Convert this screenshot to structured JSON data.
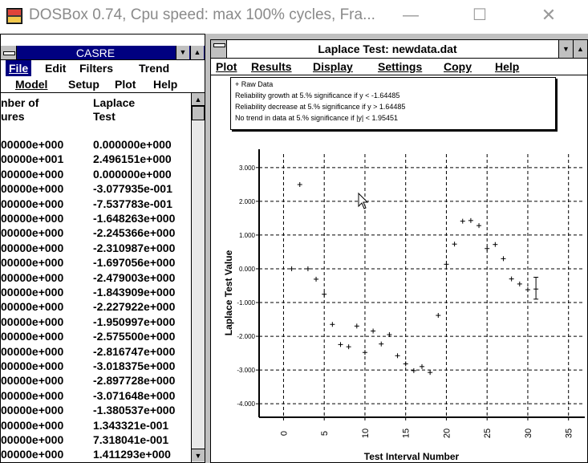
{
  "host": {
    "title": "DOSBox 0.74, Cpu speed: max 100% cycles, Fra...",
    "icon": "dosbox-icon",
    "controls": {
      "minimize": "—",
      "maximize": "☐",
      "close": "✕"
    }
  },
  "casre": {
    "title": "CASRE",
    "title_buttons": {
      "down": "▼",
      "up": "▲"
    },
    "menu_row1": [
      {
        "label": "File",
        "selected": true
      },
      {
        "label": "Edit",
        "selected": false
      },
      {
        "label": "Filters",
        "selected": false
      },
      {
        "label": "Trend",
        "selected": false
      }
    ],
    "menu_row2": [
      {
        "label": "Model"
      },
      {
        "label": "Setup"
      },
      {
        "label": "Plot"
      },
      {
        "label": "Help"
      }
    ],
    "columns": {
      "col1_line1": "nber of",
      "col1_line2": "ures",
      "col2_line1": "Laplace",
      "col2_line2": "Test"
    },
    "rows": [
      [
        "00000e+000",
        "0.000000e+000"
      ],
      [
        "00000e+001",
        "2.496151e+000"
      ],
      [
        "00000e+000",
        "0.000000e+000"
      ],
      [
        "00000e+000",
        "-3.077935e-001"
      ],
      [
        "00000e+000",
        "-7.537783e-001"
      ],
      [
        "00000e+000",
        "-1.648263e+000"
      ],
      [
        "00000e+000",
        "-2.245366e+000"
      ],
      [
        "00000e+000",
        "-2.310987e+000"
      ],
      [
        "00000e+000",
        "-1.697056e+000"
      ],
      [
        "00000e+000",
        "-2.479003e+000"
      ],
      [
        "00000e+000",
        "-1.843909e+000"
      ],
      [
        "00000e+000",
        "-2.227922e+000"
      ],
      [
        "00000e+000",
        "-1.950997e+000"
      ],
      [
        "00000e+000",
        "-2.575500e+000"
      ],
      [
        "00000e+000",
        "-2.816747e+000"
      ],
      [
        "00000e+000",
        "-3.018375e+000"
      ],
      [
        "00000e+000",
        "-2.897728e+000"
      ],
      [
        "00000e+000",
        "-3.071648e+000"
      ],
      [
        "00000e+000",
        "-1.380537e+000"
      ],
      [
        "00000e+000",
        "1.343321e-001"
      ],
      [
        "00000e+000",
        "7.318041e-001"
      ],
      [
        "00000e+000",
        "1.411293e+000"
      ]
    ],
    "scroll": {
      "up": "▲",
      "down": "▼"
    }
  },
  "laplace": {
    "title": "Laplace Test:  newdata.dat",
    "title_buttons": {
      "down": "▼",
      "up": "▲"
    },
    "menu": [
      {
        "label": "Plot"
      },
      {
        "label": "Results"
      },
      {
        "label": "Display"
      },
      {
        "label": "Settings"
      },
      {
        "label": "Copy"
      },
      {
        "label": "Help"
      }
    ],
    "legend": [
      "+  Raw Data",
      "Reliability growth at 5.% significance if y < -1.64485",
      "Reliability decrease at 5.% significance if y > 1.64485",
      "No trend in data at 5.% significance if |y| < 1.95451"
    ]
  },
  "chart_data": {
    "type": "scatter",
    "xlabel": "Test Interval Number",
    "ylabel": "Laplace Test Value",
    "xlim": [
      -3,
      37
    ],
    "ylim": [
      -4.4,
      3.4
    ],
    "x_ticks": [
      0,
      5,
      10,
      15,
      20,
      25,
      30,
      35
    ],
    "y_ticks": [
      3,
      2,
      1,
      0,
      -1,
      -2,
      -3,
      -4
    ],
    "y_tick_labels": [
      "3.000",
      "2.000",
      "1.000",
      "0.000",
      "-1.000",
      "-2.000",
      "-3.000",
      "-4.000"
    ],
    "grid": true,
    "marker": "+",
    "points": [
      [
        1,
        0.0
      ],
      [
        2,
        2.496
      ],
      [
        3,
        0.0
      ],
      [
        4,
        -0.308
      ],
      [
        5,
        -0.754
      ],
      [
        6,
        -1.648
      ],
      [
        7,
        -2.245
      ],
      [
        8,
        -2.311
      ],
      [
        9,
        -1.697
      ],
      [
        10,
        -2.479
      ],
      [
        11,
        -1.844
      ],
      [
        12,
        -2.228
      ],
      [
        13,
        -1.951
      ],
      [
        14,
        -2.576
      ],
      [
        15,
        -2.817
      ],
      [
        16,
        -3.018
      ],
      [
        17,
        -2.898
      ],
      [
        18,
        -3.072
      ],
      [
        19,
        -1.381
      ],
      [
        20,
        0.134
      ],
      [
        21,
        0.732
      ],
      [
        22,
        1.411
      ],
      [
        23,
        1.43
      ],
      [
        24,
        1.28
      ],
      [
        25,
        0.6
      ],
      [
        26,
        0.72
      ],
      [
        27,
        0.3
      ],
      [
        28,
        -0.3
      ],
      [
        29,
        -0.45
      ],
      [
        30,
        -0.62
      ]
    ],
    "error_bar": {
      "x": 31,
      "y": -0.6,
      "low": -0.9,
      "high": -0.25
    }
  }
}
